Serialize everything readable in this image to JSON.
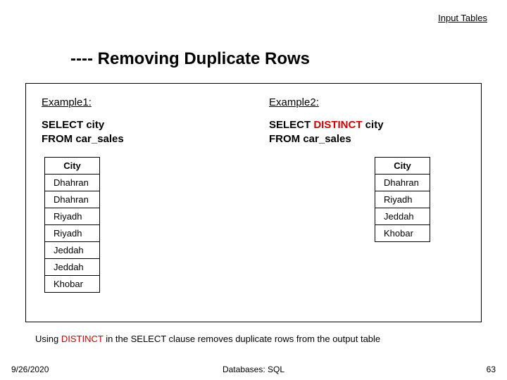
{
  "top_link": "Input Tables",
  "title_prefix": "---- ",
  "title_text": "Removing Duplicate Rows",
  "example1": {
    "label": "Example1:",
    "sql_line1": "SELECT city",
    "sql_line2": "FROM car_sales",
    "col_header": "City",
    "rows": [
      "Dhahran",
      "Dhahran",
      "Riyadh",
      "Riyadh",
      "Jeddah",
      "Jeddah",
      "Khobar"
    ]
  },
  "example2": {
    "label": "Example2:",
    "sql_pre": "SELECT ",
    "sql_distinct": "DISTINCT",
    "sql_post": " city",
    "sql_line2": "FROM car_sales",
    "col_header": "City",
    "rows": [
      "Dhahran",
      "Riyadh",
      "Jeddah",
      "Khobar"
    ]
  },
  "caption": {
    "pre": "Using ",
    "kw": "DISTINCT",
    "post": " in the SELECT clause removes duplicate rows from the output table"
  },
  "footer": {
    "date": "9/26/2020",
    "center": "Databases: SQL",
    "page": "63"
  },
  "colors": {
    "distinct": "#cc0000"
  }
}
